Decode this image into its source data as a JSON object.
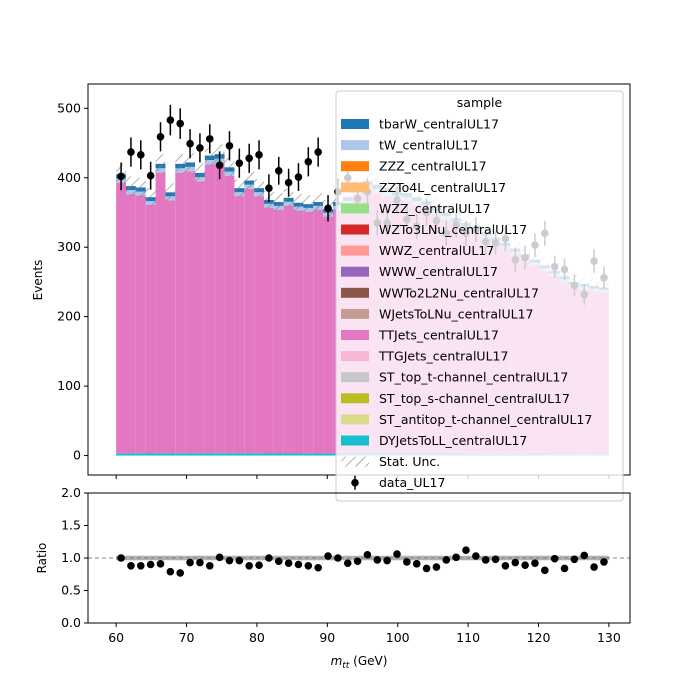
{
  "chart_data": [
    {
      "type": "bar",
      "stacked": true,
      "ylabel": "Events",
      "ylim": [
        -28,
        535
      ],
      "xlim": [
        56,
        133
      ],
      "yticks": [
        0,
        100,
        200,
        300,
        400,
        500
      ],
      "legend": {
        "title": "sample",
        "placement": "top-right",
        "entries": [
          {
            "label": "tbarW_centralUL17",
            "color": "#1f77b4",
            "kind": "patch"
          },
          {
            "label": "tW_centralUL17",
            "color": "#aec7e8",
            "kind": "patch"
          },
          {
            "label": "ZZZ_centralUL17",
            "color": "#ff7f0e",
            "kind": "patch"
          },
          {
            "label": "ZZTo4L_centralUL17",
            "color": "#ffbb78",
            "kind": "patch"
          },
          {
            "label": "WZZ_centralUL17",
            "color": "#98df8a",
            "kind": "patch"
          },
          {
            "label": "WZTo3LNu_centralUL17",
            "color": "#d62728",
            "kind": "patch"
          },
          {
            "label": "WWZ_centralUL17",
            "color": "#ff9896",
            "kind": "patch"
          },
          {
            "label": "WWW_centralUL17",
            "color": "#9467bd",
            "kind": "patch"
          },
          {
            "label": "WWTo2L2Nu_centralUL17",
            "color": "#8c564b",
            "kind": "patch"
          },
          {
            "label": "WJetsToLNu_centralUL17",
            "color": "#c49c94",
            "kind": "patch"
          },
          {
            "label": "TTJets_centralUL17",
            "color": "#e377c2",
            "kind": "patch"
          },
          {
            "label": "TTGJets_centralUL17",
            "color": "#f7b6d2",
            "kind": "patch"
          },
          {
            "label": "ST_top_t-channel_centralUL17",
            "color": "#c7c7c7",
            "kind": "patch"
          },
          {
            "label": "ST_top_s-channel_centralUL17",
            "color": "#bcbd22",
            "kind": "patch"
          },
          {
            "label": "ST_antitop_t-channel_centralUL17",
            "color": "#dbdb8d",
            "kind": "patch"
          },
          {
            "label": "DYJetsToLL_centralUL17",
            "color": "#17becf",
            "kind": "patch"
          },
          {
            "label": "Stat. Unc.",
            "color": "#808080",
            "kind": "hatch"
          },
          {
            "label": "data_UL17",
            "color": "#000000",
            "kind": "marker"
          }
        ]
      },
      "x": [
        60.7,
        62.1,
        63.5,
        64.9,
        66.3,
        67.7,
        69.1,
        70.5,
        71.9,
        73.3,
        74.7,
        76.1,
        77.5,
        78.9,
        80.3,
        81.7,
        83.1,
        84.5,
        85.9,
        87.3,
        88.7,
        90.1,
        91.5,
        92.9,
        94.3,
        95.7,
        97.1,
        98.5,
        99.9,
        101.3,
        102.7,
        104.1,
        105.5,
        106.9,
        108.3,
        109.7,
        111.1,
        112.5,
        113.9,
        115.3,
        116.7,
        118.1,
        119.5,
        120.9,
        122.3,
        123.7,
        125.1,
        126.5,
        127.9,
        129.3
      ],
      "mc_total": [
        405,
        388,
        386,
        372,
        420,
        379,
        420,
        422,
        407,
        432,
        434,
        415,
        385,
        396,
        385,
        368,
        365,
        371,
        364,
        362,
        365,
        355,
        365,
        372,
        388,
        395,
        390,
        385,
        380,
        378,
        372,
        366,
        358,
        350,
        342,
        335,
        330,
        322,
        314,
        306,
        298,
        290,
        282,
        274,
        266,
        258,
        250,
        247,
        244,
        242
      ],
      "mc_unc": [
        14,
        14,
        14,
        13,
        14,
        13,
        14,
        14,
        14,
        14,
        14,
        14,
        13,
        13,
        13,
        13,
        13,
        13,
        13,
        13,
        13,
        13,
        13,
        13,
        13,
        14,
        13,
        13,
        13,
        13,
        13,
        13,
        13,
        12,
        12,
        12,
        12,
        12,
        12,
        12,
        11,
        11,
        11,
        11,
        11,
        11,
        11,
        11,
        11,
        11
      ],
      "stack_layers": [
        {
          "name": "DYJetsToLL_centralUL17",
          "fraction": 0.008
        },
        {
          "name": "TTJets_centralUL17",
          "fraction": 0.962
        },
        {
          "name": "tW_centralUL17",
          "fraction": 0.015
        },
        {
          "name": "tbarW_centralUL17",
          "fraction": 0.015
        }
      ],
      "data_values": [
        402,
        437,
        433,
        403,
        459,
        483,
        478,
        449,
        443,
        456,
        418,
        446,
        421,
        428,
        433,
        385,
        410,
        393,
        401,
        423,
        437,
        356,
        380,
        400,
        370,
        380,
        335,
        335,
        368,
        340,
        330,
        350,
        338,
        320,
        332,
        320,
        325,
        308,
        306,
        312,
        282,
        285,
        303,
        320,
        272,
        268,
        245,
        232,
        280,
        256
      ],
      "data_errors": [
        20,
        21,
        21,
        20,
        21,
        22,
        22,
        21,
        21,
        21,
        20,
        21,
        21,
        21,
        21,
        20,
        20,
        20,
        20,
        21,
        21,
        19,
        19,
        20,
        19,
        19,
        18,
        18,
        19,
        18,
        18,
        19,
        18,
        18,
        18,
        18,
        18,
        18,
        17,
        18,
        17,
        17,
        17,
        18,
        16,
        16,
        16,
        15,
        17,
        16
      ]
    },
    {
      "type": "scatter",
      "ylabel": "Ratio",
      "xlabel": "m_tt (GeV)",
      "xlabel_main": "m",
      "xlabel_sub": "tt",
      "xlabel_unit": " (GeV)",
      "ylim": [
        0.0,
        2.0
      ],
      "yticks": [
        "0.0",
        "0.5",
        "1.0",
        "1.5",
        "2.0"
      ],
      "xticks": [
        60,
        70,
        80,
        90,
        100,
        110,
        120,
        130
      ],
      "reference_line": 1.0,
      "unc_band": 0.035,
      "ratio_values": [
        1.0,
        0.88,
        0.88,
        0.9,
        0.91,
        0.79,
        0.77,
        0.93,
        0.93,
        0.88,
        1.01,
        0.96,
        0.96,
        0.88,
        0.89,
        1.0,
        0.95,
        0.92,
        0.9,
        0.88,
        0.85,
        1.03,
        1.0,
        0.92,
        0.95,
        1.05,
        0.97,
        0.96,
        1.06,
        0.94,
        0.91,
        0.84,
        0.86,
        0.97,
        1.01,
        1.12,
        1.03,
        0.97,
        0.98,
        0.88,
        0.93,
        0.89,
        0.92,
        0.81,
        0.99,
        0.84,
        0.98,
        1.04,
        0.86,
        0.94
      ],
      "ratio_errors": [
        0.04,
        0.04,
        0.04,
        0.04,
        0.04,
        0.04,
        0.04,
        0.04,
        0.04,
        0.04,
        0.04,
        0.04,
        0.04,
        0.04,
        0.04,
        0.04,
        0.04,
        0.04,
        0.04,
        0.04,
        0.04,
        0.04,
        0.04,
        0.04,
        0.04,
        0.04,
        0.04,
        0.04,
        0.04,
        0.04,
        0.04,
        0.04,
        0.04,
        0.04,
        0.04,
        0.05,
        0.04,
        0.04,
        0.04,
        0.04,
        0.04,
        0.04,
        0.04,
        0.04,
        0.04,
        0.04,
        0.04,
        0.04,
        0.04,
        0.04
      ]
    }
  ]
}
